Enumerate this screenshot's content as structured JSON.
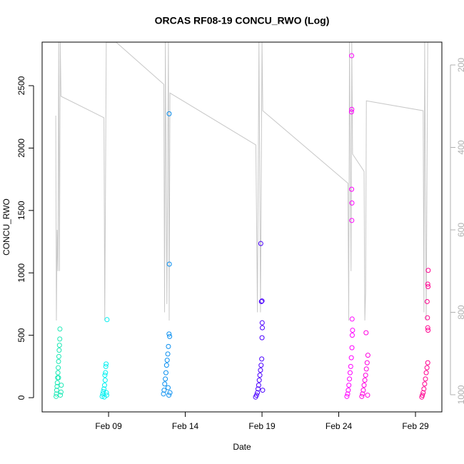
{
  "chart_data": {
    "type": "scatter",
    "title": "ORCAS RF08-19 CONCU_RWO (Log)",
    "x_label": "Date",
    "y_label": "CONCU_RWO",
    "xlim": [
      4.67,
      30.72
    ],
    "xticks": [
      {
        "value": 9,
        "label": "Feb 09"
      },
      {
        "value": 14,
        "label": "Feb 14"
      },
      {
        "value": 19,
        "label": "Feb 19"
      },
      {
        "value": 24,
        "label": "Feb 24"
      },
      {
        "value": 29,
        "label": "Feb 29"
      }
    ],
    "ylim": [
      -114,
      2849
    ],
    "yticks": [
      0,
      500,
      1000,
      1500,
      2000,
      2500
    ],
    "y2lim": [
      1041.6,
      144.6
    ],
    "y2ticks": [
      200,
      400,
      600,
      800,
      1000
    ],
    "series": [
      {
        "type": "line",
        "axis": "y2",
        "color": "#c8c8c8",
        "x": [
          5.56,
          5.6,
          5.65,
          5.7,
          5.75,
          5.8,
          5.85,
          5.9,
          8.7,
          8.75,
          8.8,
          8.85,
          9.5,
          12.6,
          12.65,
          12.7,
          12.8,
          12.9,
          12.95,
          13.0,
          18.6,
          18.7,
          18.8,
          18.9,
          19.0,
          19.05,
          24.6,
          24.65,
          24.7,
          24.8,
          24.85,
          24.9,
          25.65,
          25.7,
          25.75,
          25.8,
          29.5,
          29.55,
          29.6,
          29.7,
          29.8
        ],
        "values": [
          323,
          820,
          600,
          700,
          145,
          700,
          145,
          276,
          328,
          820,
          500,
          145,
          145,
          247,
          800,
          145,
          780,
          145,
          820,
          268,
          394,
          800,
          145,
          800,
          145,
          311,
          487,
          820,
          145,
          700,
          145,
          416,
          458,
          820,
          752,
          287,
          311,
          800,
          145,
          820,
          145
        ]
      },
      {
        "type": "scatter",
        "color": "#1de9b6",
        "x": [
          5.58,
          5.6,
          5.62,
          5.64,
          5.66,
          5.68,
          5.7,
          5.72,
          5.74,
          5.76,
          5.78,
          5.8,
          5.82,
          5.83,
          5.86,
          5.9,
          5.92,
          5.74
        ],
        "values": [
          10,
          30,
          60,
          90,
          120,
          160,
          200,
          240,
          290,
          330,
          380,
          420,
          470,
          550,
          20,
          45,
          100,
          160
        ]
      },
      {
        "type": "scatter",
        "color": "#00f0f0",
        "x": [
          8.58,
          8.62,
          8.66,
          8.7,
          8.74,
          8.78,
          8.8,
          8.82,
          8.84,
          8.86,
          8.88,
          8.9,
          8.72,
          8.76
        ],
        "values": [
          10,
          30,
          50,
          70,
          100,
          140,
          200,
          250,
          270,
          40,
          20,
          625,
          5,
          180
        ]
      },
      {
        "type": "scatter",
        "color": "#0a8ff0",
        "x": [
          12.58,
          12.62,
          12.66,
          12.7,
          12.74,
          12.78,
          12.82,
          12.86,
          12.9,
          12.94,
          12.98,
          13.0,
          12.93,
          12.88,
          12.96,
          12.95
        ],
        "values": [
          30,
          60,
          110,
          150,
          200,
          260,
          300,
          350,
          410,
          510,
          490,
          40,
          20,
          80,
          1070,
          2275
        ]
      },
      {
        "type": "scatter",
        "color": "#4b00ff",
        "x": [
          18.58,
          18.64,
          18.7,
          18.74,
          18.78,
          18.82,
          18.86,
          18.9,
          18.94,
          18.98,
          19.0,
          19.02,
          19.01,
          18.96,
          19.0,
          18.92,
          19.04
        ],
        "values": [
          5,
          20,
          40,
          70,
          100,
          140,
          180,
          220,
          260,
          310,
          480,
          560,
          600,
          770,
          775,
          1235,
          60
        ]
      },
      {
        "type": "scatter",
        "color": "#ff00ff",
        "x": [
          24.53,
          24.58,
          24.62,
          24.66,
          24.7,
          24.74,
          24.78,
          24.82,
          24.86,
          24.88,
          24.9,
          24.87,
          24.85,
          24.86,
          24.84,
          24.83,
          24.85,
          24.84
        ],
        "values": [
          10,
          30,
          60,
          100,
          150,
          200,
          250,
          320,
          400,
          500,
          540,
          630,
          1420,
          1560,
          1670,
          2290,
          2310,
          2740
        ]
      },
      {
        "type": "scatter",
        "color": "#ff00e0",
        "x": [
          25.5,
          25.55,
          25.6,
          25.65,
          25.7,
          25.75,
          25.8,
          25.85,
          25.9,
          25.78,
          25.88
        ],
        "values": [
          10,
          30,
          60,
          100,
          140,
          180,
          230,
          280,
          340,
          520,
          20
        ]
      },
      {
        "type": "scatter",
        "color": "#ff0090",
        "x": [
          29.41,
          29.45,
          29.5,
          29.55,
          29.6,
          29.65,
          29.7,
          29.75,
          29.8,
          29.82,
          29.8,
          29.78,
          29.76,
          29.82,
          29.8,
          29.83
        ],
        "values": [
          5,
          20,
          40,
          70,
          110,
          150,
          200,
          240,
          280,
          540,
          560,
          640,
          770,
          890,
          910,
          1020
        ]
      }
    ]
  }
}
